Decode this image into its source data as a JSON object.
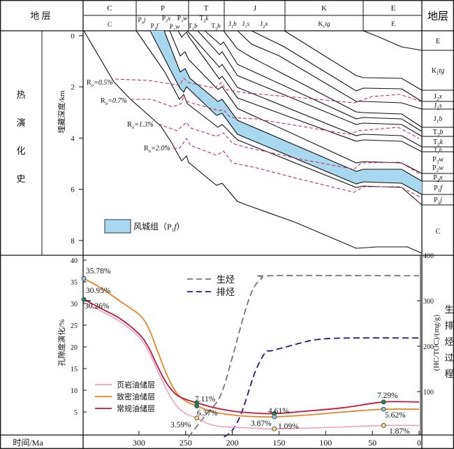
{
  "header": {
    "left_title": "地 层",
    "right_title": "地层",
    "systems": [
      "C",
      "P",
      "T",
      "J",
      "K",
      "E"
    ],
    "formations": [
      {
        "t": "C",
        "s": "",
        "u": ""
      },
      {
        "t": "P",
        "s": "1",
        "u": "j"
      },
      {
        "t": "P",
        "s": "1",
        "u": "f"
      },
      {
        "t": "P",
        "s": "2",
        "u": "x"
      },
      {
        "t": "P",
        "s": "2",
        "u": "w"
      },
      {
        "t": "P",
        "s": "3",
        "u": "w"
      },
      {
        "t": "T",
        "s": "1",
        "u": "b"
      },
      {
        "t": "T",
        "s": "2",
        "u": "k"
      },
      {
        "t": "T",
        "s": "3",
        "u": "b"
      },
      {
        "t": "J",
        "s": "1",
        "u": "b"
      },
      {
        "t": "J",
        "s": "1",
        "u": "s"
      },
      {
        "t": "J",
        "s": "2",
        "u": "x"
      },
      {
        "t": "K",
        "s": "1",
        "u": "tg"
      },
      {
        "t": "E",
        "s": "",
        "u": ""
      }
    ]
  },
  "right_column": [
    {
      "t": "E",
      "s": "",
      "u": ""
    },
    {
      "t": "K",
      "s": "1",
      "u": "tg"
    },
    {
      "t": "J",
      "s": "2",
      "u": "x"
    },
    {
      "t": "J",
      "s": "1",
      "u": "s"
    },
    {
      "t": "J",
      "s": "1",
      "u": "b"
    },
    {
      "t": "T",
      "s": "3",
      "u": "b"
    },
    {
      "t": "T",
      "s": "2",
      "u": "k"
    },
    {
      "t": "T",
      "s": "1",
      "u": "b"
    },
    {
      "t": "P",
      "s": "3",
      "u": "w"
    },
    {
      "t": "P",
      "s": "2",
      "u": "w"
    },
    {
      "t": "P",
      "s": "2",
      "u": "x"
    },
    {
      "t": "P",
      "s": "1",
      "u": "f"
    },
    {
      "t": "P",
      "s": "1",
      "u": "j"
    },
    {
      "t": "C",
      "s": "",
      "u": ""
    }
  ],
  "upper": {
    "section_title_chars": [
      "热",
      "演",
      "化",
      "史"
    ],
    "depth_axis_label": "埋藏深度/km",
    "depth_ticks": [
      "0",
      "2",
      "4",
      "6",
      "8"
    ],
    "ro_labels": [
      {
        "t": "R",
        "s": "o",
        "u": "=0.5%"
      },
      {
        "t": "R",
        "s": "o",
        "u": "=0.7%"
      },
      {
        "t": "R",
        "s": "o",
        "u": "=1.3%"
      },
      {
        "t": "R",
        "s": "o",
        "u": "=2.0%"
      }
    ],
    "legend": {
      "label": "风城组（P",
      "sub": "1",
      "suffix": "f",
      "close": "）"
    },
    "fill_color": "#a8d8f0",
    "ro_color": "#c8325a"
  },
  "lower": {
    "time_axis_label": "时间/Ma",
    "porosity_axis_label": "孔隙度演化/%",
    "hc_axis_label": "(HC/TOC)/(mg/g)",
    "hc_title_chars": [
      "生",
      "排",
      "烃",
      "过",
      "程"
    ]
  },
  "chart_data": {
    "type": "line",
    "xlabel": "时间/Ma",
    "ylabel": "孔隙度演化/%",
    "y2label": "(HC/TOC)/(mg/g)",
    "xlim": [
      359,
      0
    ],
    "ylim": [
      0,
      40
    ],
    "y2lim": [
      0,
      400
    ],
    "x_ticks": [
      "300",
      "250",
      "200",
      "150",
      "100",
      "50",
      "0"
    ],
    "x_tick_values": [
      300,
      250,
      200,
      150,
      100,
      50,
      0
    ],
    "y_ticks": [
      "5",
      "10",
      "15",
      "20",
      "25",
      "30",
      "35",
      "40"
    ],
    "y_tick_values": [
      5,
      10,
      15,
      20,
      25,
      30,
      35,
      40
    ],
    "y2_ticks": [
      "100",
      "200",
      "300",
      "400"
    ],
    "y2_tick_values": [
      100,
      200,
      300,
      400
    ],
    "porosity_series": [
      {
        "name": "页岩油储层",
        "color": "#eba3c3",
        "points": [
          [
            359,
            30.26
          ],
          [
            340,
            28.2
          ],
          [
            320,
            25.8
          ],
          [
            300,
            22.3
          ],
          [
            290,
            19
          ],
          [
            280,
            14.5
          ],
          [
            270,
            10
          ],
          [
            260,
            6.5
          ],
          [
            250,
            4.6
          ],
          [
            238,
            3.59
          ],
          [
            225,
            2.2
          ],
          [
            210,
            1.6
          ],
          [
            180,
            1.3
          ],
          [
            155,
            1.09
          ],
          [
            100,
            1.4
          ],
          [
            38,
            1.87
          ],
          [
            0,
            1.87
          ]
        ]
      },
      {
        "name": "致密油储层",
        "color": "#e8822a",
        "points": [
          [
            359,
            35.78
          ],
          [
            340,
            33.5
          ],
          [
            320,
            30.5
          ],
          [
            300,
            27.5
          ],
          [
            290,
            24.5
          ],
          [
            280,
            19
          ],
          [
            270,
            13.5
          ],
          [
            260,
            9.5
          ],
          [
            250,
            7.5
          ],
          [
            238,
            6.37
          ],
          [
            220,
            5
          ],
          [
            200,
            4.3
          ],
          [
            180,
            3.95
          ],
          [
            155,
            3.87
          ],
          [
            120,
            4.3
          ],
          [
            80,
            5
          ],
          [
            38,
            5.62
          ],
          [
            0,
            5.62
          ]
        ]
      },
      {
        "name": "常规油储层",
        "color": "#c8143c",
        "points": [
          [
            359,
            30.95
          ],
          [
            340,
            28.8
          ],
          [
            320,
            26.5
          ],
          [
            300,
            23
          ],
          [
            290,
            20
          ],
          [
            280,
            15.5
          ],
          [
            270,
            11.5
          ],
          [
            260,
            9
          ],
          [
            250,
            7.9
          ],
          [
            238,
            7.11
          ],
          [
            220,
            6
          ],
          [
            200,
            5.2
          ],
          [
            180,
            4.8
          ],
          [
            155,
            4.61
          ],
          [
            120,
            5.2
          ],
          [
            80,
            6
          ],
          [
            38,
            7.29
          ],
          [
            0,
            7.29
          ]
        ]
      }
    ],
    "hc_series": [
      {
        "name": "生烃",
        "color": "#7a7474",
        "points": [
          [
            247,
            0
          ],
          [
            230,
            45
          ],
          [
            213,
            90
          ],
          [
            200,
            175
          ],
          [
            188,
            265
          ],
          [
            178,
            325
          ],
          [
            168,
            350
          ],
          [
            160,
            355
          ],
          [
            0,
            355
          ]
        ]
      },
      {
        "name": "排烃",
        "color": "#2a1a7a",
        "points": [
          [
            209,
            0
          ],
          [
            200,
            15
          ],
          [
            190,
            54
          ],
          [
            176,
            141
          ],
          [
            165,
            185
          ],
          [
            158,
            190
          ],
          [
            145,
            197
          ],
          [
            125,
            208
          ],
          [
            108,
            215
          ],
          [
            76,
            218
          ],
          [
            0,
            218
          ]
        ]
      }
    ],
    "annotations": [
      {
        "text": "35.78%",
        "t": 359,
        "v": 35.78,
        "marker": "#8fc3e0"
      },
      {
        "text": "30.95%",
        "t": 359,
        "v": 30.95,
        "marker": "#1f8a5a"
      },
      {
        "text": "30.26%",
        "t": 359,
        "v": 30.26,
        "marker": ""
      },
      {
        "text": "7.11%",
        "t": 238,
        "v": 7.11,
        "marker": "#1f8a5a"
      },
      {
        "text": "6.37%",
        "t": 238,
        "v": 6.37,
        "marker": "#1f8a5a"
      },
      {
        "text": "3.59%",
        "t": 238,
        "v": 3.59,
        "marker": "#f2dc8a"
      },
      {
        "text": "4.61%",
        "t": 155,
        "v": 4.61,
        "marker": "#1f8a5a"
      },
      {
        "text": "3.87%",
        "t": 155,
        "v": 3.87,
        "marker": "#8fc3e0"
      },
      {
        "text": "1.09%",
        "t": 155,
        "v": 1.09,
        "marker": "#f2dc8a"
      },
      {
        "text": "7.29%",
        "t": 38,
        "v": 7.29,
        "marker": "#1f8a5a"
      },
      {
        "text": "5.62%",
        "t": 38,
        "v": 5.62,
        "marker": "#8fc3e0"
      },
      {
        "text": "1.87%",
        "t": 38,
        "v": 1.87,
        "marker": "#f2dc8a"
      }
    ]
  }
}
